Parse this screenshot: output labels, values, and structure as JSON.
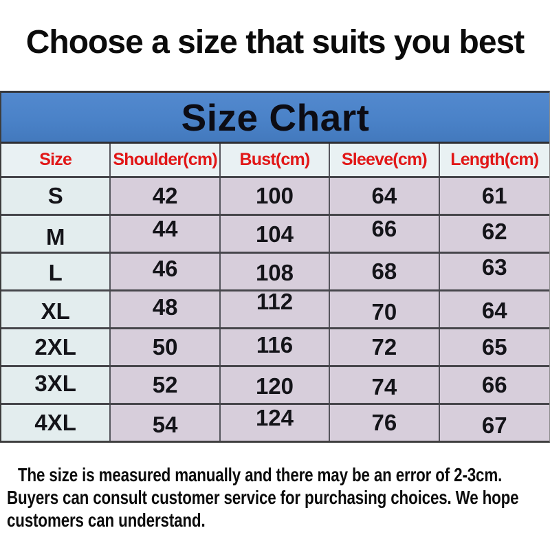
{
  "page_title": "Choose a size that suits you best",
  "size_chart": {
    "title": "Size Chart",
    "columns": [
      "Size",
      "Shoulder(cm)",
      "Bust(cm)",
      "Sleeve(cm)",
      "Length(cm)"
    ],
    "rows": [
      [
        "S",
        "42",
        "100",
        "64",
        "61"
      ],
      [
        "M",
        "44",
        "104",
        "66",
        "62"
      ],
      [
        "L",
        "46",
        "108",
        "68",
        "63"
      ],
      [
        "XL",
        "48",
        "112",
        "70",
        "64"
      ],
      [
        "2XL",
        "50",
        "116",
        "72",
        "65"
      ],
      [
        "3XL",
        "52",
        "120",
        "74",
        "66"
      ],
      [
        "4XL",
        "54",
        "124",
        "76",
        "67"
      ]
    ]
  },
  "footnote": {
    "lines": [
      "The size is measured manually and there may be an error of 2-3cm.",
      "Buyers can consult customer service for purchasing choices. We hope",
      "customers can understand."
    ],
    "full_text": "The size is measured manually and there may be an error of 2-3cm. Buyers can consult customer service for purchasing choices. We hope customers can understand."
  },
  "colors": {
    "band_blue": "#4a82c8",
    "header_red": "#e11717",
    "header_row_bg": "#e9f1f3",
    "size_column_bg": "#e3edee",
    "measurement_bg": "#d7cedb",
    "border_dark": "#46464b",
    "text_black": "#111111"
  }
}
